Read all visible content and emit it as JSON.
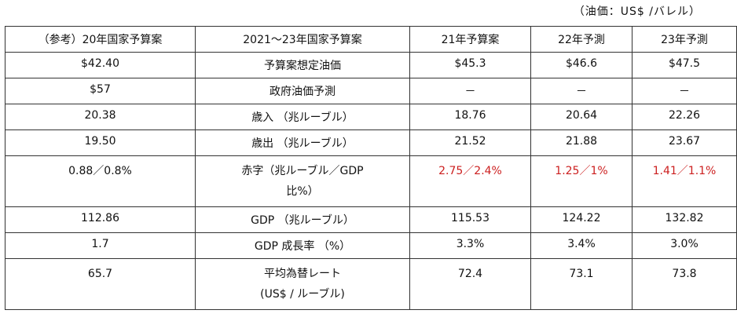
{
  "unit_note": "（油価：US$ /バレル）",
  "table": {
    "headers": [
      "（参考）20年国家予算案",
      "2021～23年国家予算案",
      "21年予算案",
      "22年予測",
      "23年予測"
    ],
    "rows": [
      {
        "ref": "$42.40",
        "item": "予算案想定油価",
        "y21": "$45.3",
        "y22": "$46.6",
        "y23": "$47.5"
      },
      {
        "ref": "$57",
        "item": "政府油価予測",
        "y21": "－",
        "y22": "－",
        "y23": "－"
      },
      {
        "ref": "20.38",
        "item": "歳入 （兆ルーブル）",
        "y21": "18.76",
        "y22": "20.64",
        "y23": "22.26"
      },
      {
        "ref": "19.50",
        "item": "歳出 （兆ルーブル）",
        "y21": "21.52",
        "y22": "21.88",
        "y23": "23.67"
      },
      {
        "ref": "0.88／0.8%",
        "item_line1": "赤字（兆ルーブル／GDP",
        "item_line2": "比%）",
        "y21": "2.75／2.4%",
        "y22": "1.25／1%",
        "y23": "1.41／1.1%"
      },
      {
        "ref": "112.86",
        "item": "GDP （兆ルーブル）",
        "y21": "115.53",
        "y22": "124.22",
        "y23": "132.82"
      },
      {
        "ref": "1.7",
        "item": "GDP 成長率 （%）",
        "y21": "3.3%",
        "y22": "3.4%",
        "y23": "3.0%"
      },
      {
        "ref": "65.7",
        "item_line1": "平均為替レート",
        "item_line2": "(US$ / ルーブル)",
        "y21": "72.4",
        "y22": "73.1",
        "y23": "73.8"
      }
    ]
  },
  "colors": {
    "deficit_highlight": "#cc1f1f",
    "border": "#333333"
  }
}
